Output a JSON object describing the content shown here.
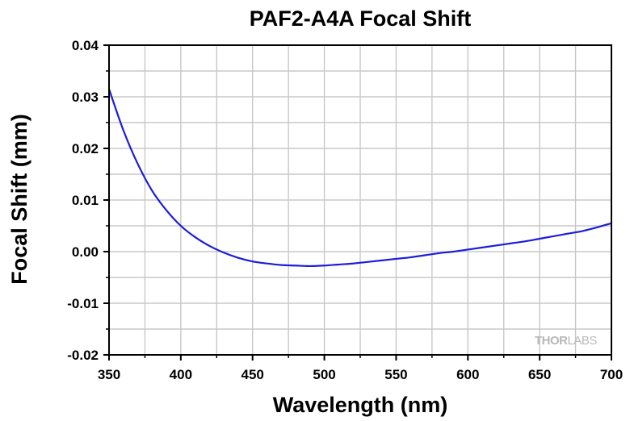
{
  "chart_data": {
    "type": "line",
    "title": "PAF2-A4A Focal Shift",
    "xlabel": "Wavelength (nm)",
    "ylabel": "Focal Shift (mm)",
    "xlim": [
      350,
      700
    ],
    "ylim": [
      -0.02,
      0.04
    ],
    "xticks": [
      "350",
      "400",
      "450",
      "500",
      "550",
      "600",
      "650",
      "700"
    ],
    "yticks": [
      "-0.02",
      "-0.01",
      "0.00",
      "0.01",
      "0.02",
      "0.03",
      "0.04"
    ],
    "grid": true,
    "line_color": "#1c1cdc",
    "series": [
      {
        "x": [
          350,
          360,
          370,
          380,
          390,
          400,
          410,
          420,
          430,
          440,
          450,
          460,
          470,
          480,
          490,
          500,
          510,
          520,
          530,
          540,
          550,
          560,
          570,
          580,
          590,
          600,
          610,
          620,
          630,
          640,
          650,
          660,
          670,
          680,
          690,
          700
        ],
        "values": [
          0.0315,
          0.0235,
          0.017,
          0.0118,
          0.008,
          0.005,
          0.0028,
          0.0011,
          -0.0002,
          -0.0012,
          -0.0019,
          -0.0023,
          -0.0026,
          -0.0027,
          -0.0028,
          -0.0027,
          -0.0025,
          -0.0023,
          -0.002,
          -0.0017,
          -0.0014,
          -0.0011,
          -0.0007,
          -0.0003,
          0.0,
          0.0004,
          0.0008,
          0.0012,
          0.0016,
          0.002,
          0.0025,
          0.003,
          0.0035,
          0.004,
          0.0047,
          0.0055
        ]
      }
    ]
  },
  "watermark": {
    "part1": "THOR",
    "part2": "LABS"
  }
}
